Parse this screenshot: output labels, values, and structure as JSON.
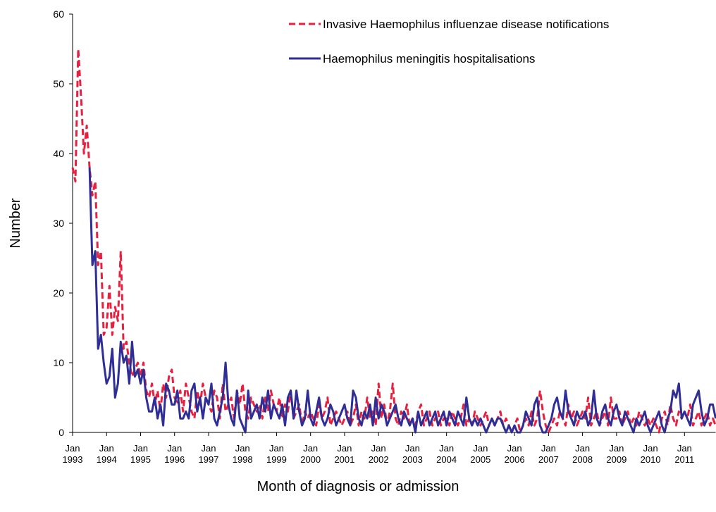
{
  "chart_data": {
    "type": "line",
    "x_label": "Month of diagnosis or admission",
    "y_label": "Number",
    "ylim": [
      0,
      60
    ],
    "yticks": [
      0,
      10,
      20,
      30,
      40,
      50,
      60
    ],
    "categories": [
      "Jan 1993",
      null,
      null,
      null,
      null,
      null,
      null,
      null,
      null,
      null,
      null,
      null,
      "Jan 1994",
      null,
      null,
      null,
      null,
      null,
      null,
      null,
      null,
      null,
      null,
      null,
      "Jan 1995",
      null,
      null,
      null,
      null,
      null,
      null,
      null,
      null,
      null,
      null,
      null,
      "Jan 1996",
      null,
      null,
      null,
      null,
      null,
      null,
      null,
      null,
      null,
      null,
      null,
      "Jan 1997",
      null,
      null,
      null,
      null,
      null,
      null,
      null,
      null,
      null,
      null,
      null,
      "Jan 1998",
      null,
      null,
      null,
      null,
      null,
      null,
      null,
      null,
      null,
      null,
      null,
      "Jan 1999",
      null,
      null,
      null,
      null,
      null,
      null,
      null,
      null,
      null,
      null,
      null,
      "Jan 2000",
      null,
      null,
      null,
      null,
      null,
      null,
      null,
      null,
      null,
      null,
      null,
      "Jan 2001",
      null,
      null,
      null,
      null,
      null,
      null,
      null,
      null,
      null,
      null,
      null,
      "Jan 2002",
      null,
      null,
      null,
      null,
      null,
      null,
      null,
      null,
      null,
      null,
      null,
      "Jan 2003",
      null,
      null,
      null,
      null,
      null,
      null,
      null,
      null,
      null,
      null,
      null,
      "Jan 2004",
      null,
      null,
      null,
      null,
      null,
      null,
      null,
      null,
      null,
      null,
      null,
      "Jan 2005",
      null,
      null,
      null,
      null,
      null,
      null,
      null,
      null,
      null,
      null,
      null,
      "Jan 2006",
      null,
      null,
      null,
      null,
      null,
      null,
      null,
      null,
      null,
      null,
      null,
      "Jan 2007",
      null,
      null,
      null,
      null,
      null,
      null,
      null,
      null,
      null,
      null,
      null,
      "Jan 2008",
      null,
      null,
      null,
      null,
      null,
      null,
      null,
      null,
      null,
      null,
      null,
      "Jan 2009",
      null,
      null,
      null,
      null,
      null,
      null,
      null,
      null,
      null,
      null,
      null,
      "Jan 2010",
      null,
      null,
      null,
      null,
      null,
      null,
      null,
      null,
      null,
      null,
      null,
      "Jan 2011",
      null,
      null,
      null,
      null,
      null,
      null,
      null,
      null,
      null,
      null,
      null
    ],
    "series": [
      {
        "name": "Invasive Haemophilus influenzae disease notifications",
        "color": "#e8203f",
        "dashed": true,
        "values": [
          38,
          36,
          55,
          48,
          40,
          44,
          38,
          34,
          36,
          24,
          26,
          14,
          15,
          21,
          14,
          18,
          16,
          26,
          12,
          13,
          10,
          8,
          9,
          10,
          8,
          10,
          6,
          5,
          7,
          4,
          6,
          3,
          7,
          5,
          8,
          9,
          5,
          4,
          6,
          3,
          7,
          5,
          3,
          2,
          6,
          4,
          7,
          5,
          4,
          3,
          6,
          5,
          2,
          7,
          3,
          4,
          5,
          2,
          6,
          4,
          7,
          3,
          2,
          5,
          4,
          3,
          4,
          2,
          5,
          3,
          6,
          4,
          3,
          5,
          2,
          4,
          3,
          6,
          2,
          3,
          4,
          1,
          3,
          2,
          3,
          2,
          1,
          4,
          2,
          3,
          5,
          1,
          2,
          3,
          2,
          1,
          2,
          3,
          1,
          2,
          4,
          1,
          3,
          2,
          5,
          2,
          3,
          1,
          7,
          2,
          4,
          1,
          3,
          7,
          2,
          1,
          3,
          2,
          4,
          1,
          2,
          1,
          3,
          4,
          1,
          2,
          3,
          1,
          2,
          3,
          1,
          2,
          2,
          1,
          3,
          2,
          1,
          2,
          4,
          1,
          2,
          1,
          3,
          2,
          1,
          2,
          3,
          1,
          2,
          1,
          2,
          3,
          1,
          2,
          1,
          0,
          1,
          2,
          0,
          1,
          2,
          1,
          3,
          1,
          2,
          6,
          3,
          1,
          0,
          1,
          2,
          1,
          3,
          2,
          1,
          4,
          2,
          3,
          1,
          2,
          3,
          2,
          5,
          1,
          2,
          3,
          1,
          2,
          3,
          1,
          5,
          2,
          2,
          3,
          1,
          2,
          3,
          1,
          2,
          1,
          3,
          2,
          1,
          2,
          1,
          2,
          1,
          0,
          2,
          3,
          1,
          4,
          2,
          1,
          3,
          2,
          3,
          2,
          4,
          1,
          2,
          3,
          1,
          2,
          3,
          1,
          2,
          1
        ]
      },
      {
        "name": "Haemophilus meningitis hospitalisations",
        "color": "#2e2e96",
        "dashed": false,
        "values": [
          null,
          null,
          null,
          null,
          null,
          null,
          38,
          24,
          26,
          12,
          14,
          10,
          7,
          8,
          12,
          5,
          7,
          13,
          10,
          11,
          7,
          13,
          8,
          9,
          7,
          9,
          5,
          3,
          3,
          5,
          2,
          4,
          1,
          7,
          6,
          4,
          4,
          6,
          2,
          2,
          3,
          2,
          6,
          7,
          3,
          5,
          2,
          5,
          4,
          7,
          2,
          1,
          3,
          5,
          10,
          4,
          2,
          1,
          6,
          2,
          1,
          0,
          6,
          2,
          3,
          4,
          2,
          5,
          3,
          6,
          2,
          4,
          3,
          2,
          4,
          1,
          5,
          6,
          2,
          6,
          3,
          1,
          2,
          6,
          2,
          1,
          3,
          5,
          2,
          1,
          2,
          4,
          3,
          1,
          2,
          3,
          4,
          2,
          1,
          6,
          5,
          2,
          1,
          3,
          2,
          4,
          1,
          5,
          2,
          4,
          3,
          1,
          2,
          3,
          4,
          2,
          1,
          3,
          2,
          1,
          2,
          0,
          3,
          1,
          2,
          3,
          1,
          2,
          3,
          1,
          2,
          3,
          1,
          3,
          2,
          1,
          3,
          2,
          1,
          5,
          2,
          1,
          2,
          1,
          2,
          1,
          0,
          1,
          2,
          1,
          2,
          2,
          1,
          0,
          1,
          0,
          1,
          0,
          0,
          1,
          3,
          2,
          1,
          4,
          5,
          1,
          0,
          0,
          1,
          2,
          4,
          5,
          3,
          2,
          6,
          3,
          2,
          1,
          3,
          2,
          2,
          3,
          1,
          2,
          6,
          2,
          1,
          3,
          4,
          2,
          1,
          3,
          4,
          2,
          1,
          3,
          2,
          1,
          0,
          2,
          1,
          2,
          3,
          1,
          0,
          1,
          2,
          3,
          1,
          0,
          2,
          3,
          6,
          5,
          7,
          2,
          3,
          2,
          1,
          4,
          5,
          6,
          3,
          1,
          2,
          4,
          4,
          2
        ]
      }
    ]
  }
}
